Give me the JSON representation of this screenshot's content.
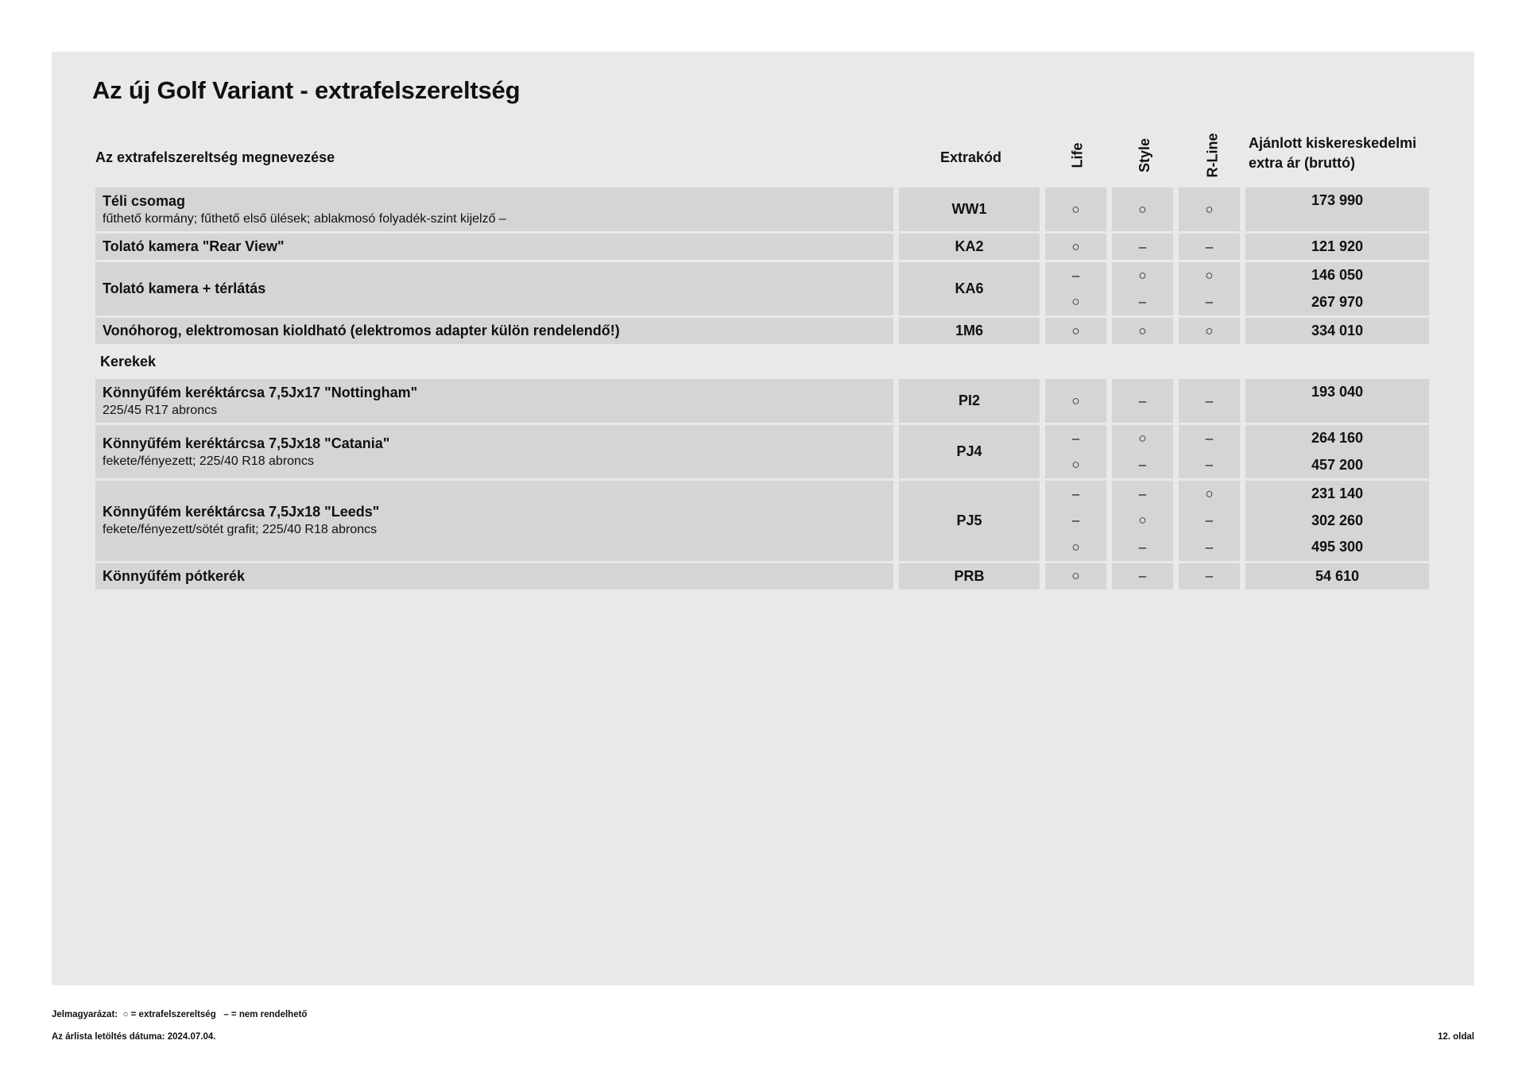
{
  "title": "Az új Golf Variant - extrafelszereltség",
  "headers": {
    "name": "Az extrafelszereltség megnevezése",
    "code": "Extrakód",
    "life": "Life",
    "style": "Style",
    "rline": "R-Line",
    "price_line1": "Ajánlott kiskereskedelmi",
    "price_line2": "extra ár (bruttó)"
  },
  "sections": [
    {
      "label": "",
      "rows": [
        {
          "name": "Téli csomag",
          "desc": "fűthető kormány; fűthető első ülések; ablakmosó folyadék-szint kijelző –",
          "code": "WW1",
          "variants": [
            {
              "life": "○",
              "style": "○",
              "rline": "○",
              "price": "173 990"
            }
          ]
        },
        {
          "name": "Tolató kamera \"Rear View\"",
          "desc": "",
          "code": "KA2",
          "variants": [
            {
              "life": "○",
              "style": "–",
              "rline": "–",
              "price": "121 920"
            }
          ]
        },
        {
          "name": "Tolató kamera + térlátás",
          "desc": "",
          "code": "KA6",
          "variants": [
            {
              "life": "–",
              "style": "○",
              "rline": "○",
              "price": "146 050"
            },
            {
              "life": "○",
              "style": "–",
              "rline": "–",
              "price": "267 970"
            }
          ]
        },
        {
          "name": "Vonóhorog, elektromosan kioldható (elektromos adapter külön rendelendő!)",
          "desc": "",
          "code": "1M6",
          "variants": [
            {
              "life": "○",
              "style": "○",
              "rline": "○",
              "price": "334 010"
            }
          ]
        }
      ]
    },
    {
      "label": "Kerekek",
      "rows": [
        {
          "name": "Könnyűfém keréktárcsa 7,5Jx17 \"Nottingham\"",
          "desc": "225/45 R17 abroncs",
          "code": "PI2",
          "variants": [
            {
              "life": "○",
              "style": "–",
              "rline": "–",
              "price": "193 040"
            }
          ]
        },
        {
          "name": "Könnyűfém keréktárcsa 7,5Jx18 \"Catania\"",
          "desc": "fekete/fényezett; 225/40 R18 abroncs",
          "code": "PJ4",
          "variants": [
            {
              "life": "–",
              "style": "○",
              "rline": "–",
              "price": "264 160"
            },
            {
              "life": "○",
              "style": "–",
              "rline": "–",
              "price": "457 200"
            }
          ]
        },
        {
          "name": "Könnyűfém keréktárcsa 7,5Jx18 \"Leeds\"",
          "desc": "fekete/fényezett/sötét grafit; 225/40 R18 abroncs",
          "code": "PJ5",
          "variants": [
            {
              "life": "–",
              "style": "–",
              "rline": "○",
              "price": "231 140"
            },
            {
              "life": "–",
              "style": "○",
              "rline": "–",
              "price": "302 260"
            },
            {
              "life": "○",
              "style": "–",
              "rline": "–",
              "price": "495 300"
            }
          ]
        },
        {
          "name": "Könnyűfém pótkerék",
          "desc": "",
          "code": "PRB",
          "variants": [
            {
              "life": "○",
              "style": "–",
              "rline": "–",
              "price": "54 610"
            }
          ]
        }
      ]
    }
  ],
  "footer": {
    "legend_label": "Jelmagyarázat:",
    "legend_option": "○ = extrafelszereltség",
    "legend_na": "– = nem rendelhető",
    "date": "Az árlista letöltés dátuma: 2024.07.04.",
    "page": "12. oldal"
  },
  "colors": {
    "panel": "#e8e9eb",
    "cell": "#d4d5d7"
  }
}
